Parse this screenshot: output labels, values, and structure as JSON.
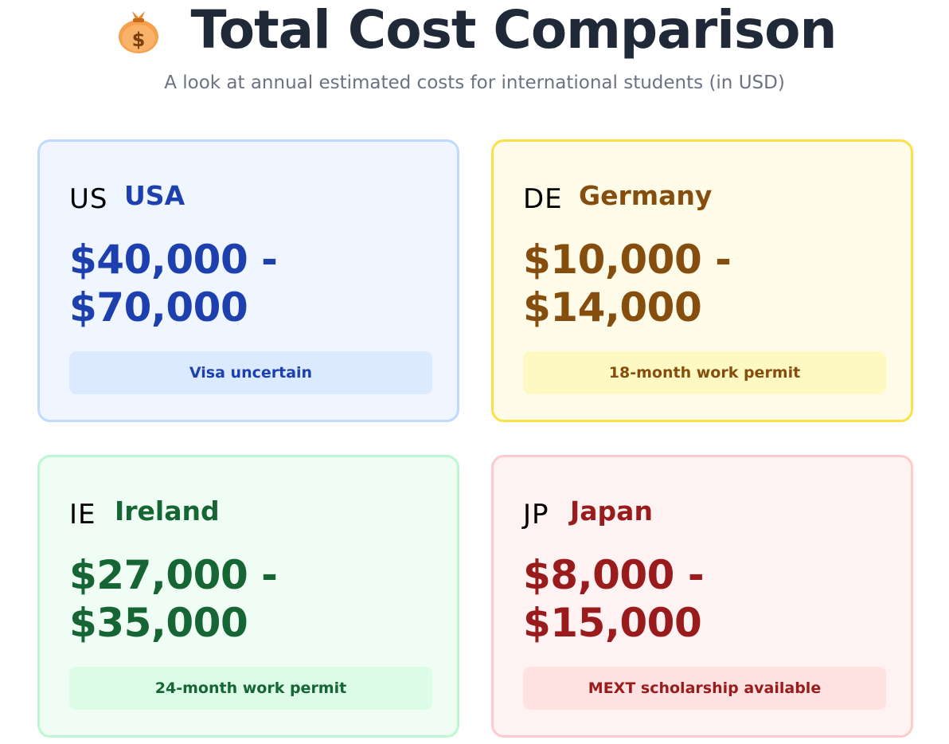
{
  "header": {
    "icon": "money-bag-icon",
    "title": "Total Cost Comparison",
    "subtitle": "A look at annual estimated costs for international students (in USD)"
  },
  "cards": [
    {
      "code": "US",
      "country": "USA",
      "price_line1": "$40,000 -",
      "price_line2": "$70,000",
      "note": "Visa uncertain",
      "accent": "#1e40af"
    },
    {
      "code": "DE",
      "country": "Germany",
      "price_line1": "$10,000 -",
      "price_line2": "$14,000",
      "note": "18-month work permit",
      "accent": "#854d0e"
    },
    {
      "code": "IE",
      "country": "Ireland",
      "price_line1": "$27,000 -",
      "price_line2": "$35,000",
      "note": "24-month work permit",
      "accent": "#166534"
    },
    {
      "code": "JP",
      "country": "Japan",
      "price_line1": "$8,000 -",
      "price_line2": "$15,000",
      "note": "MEXT scholarship available",
      "accent": "#991b1b"
    }
  ]
}
